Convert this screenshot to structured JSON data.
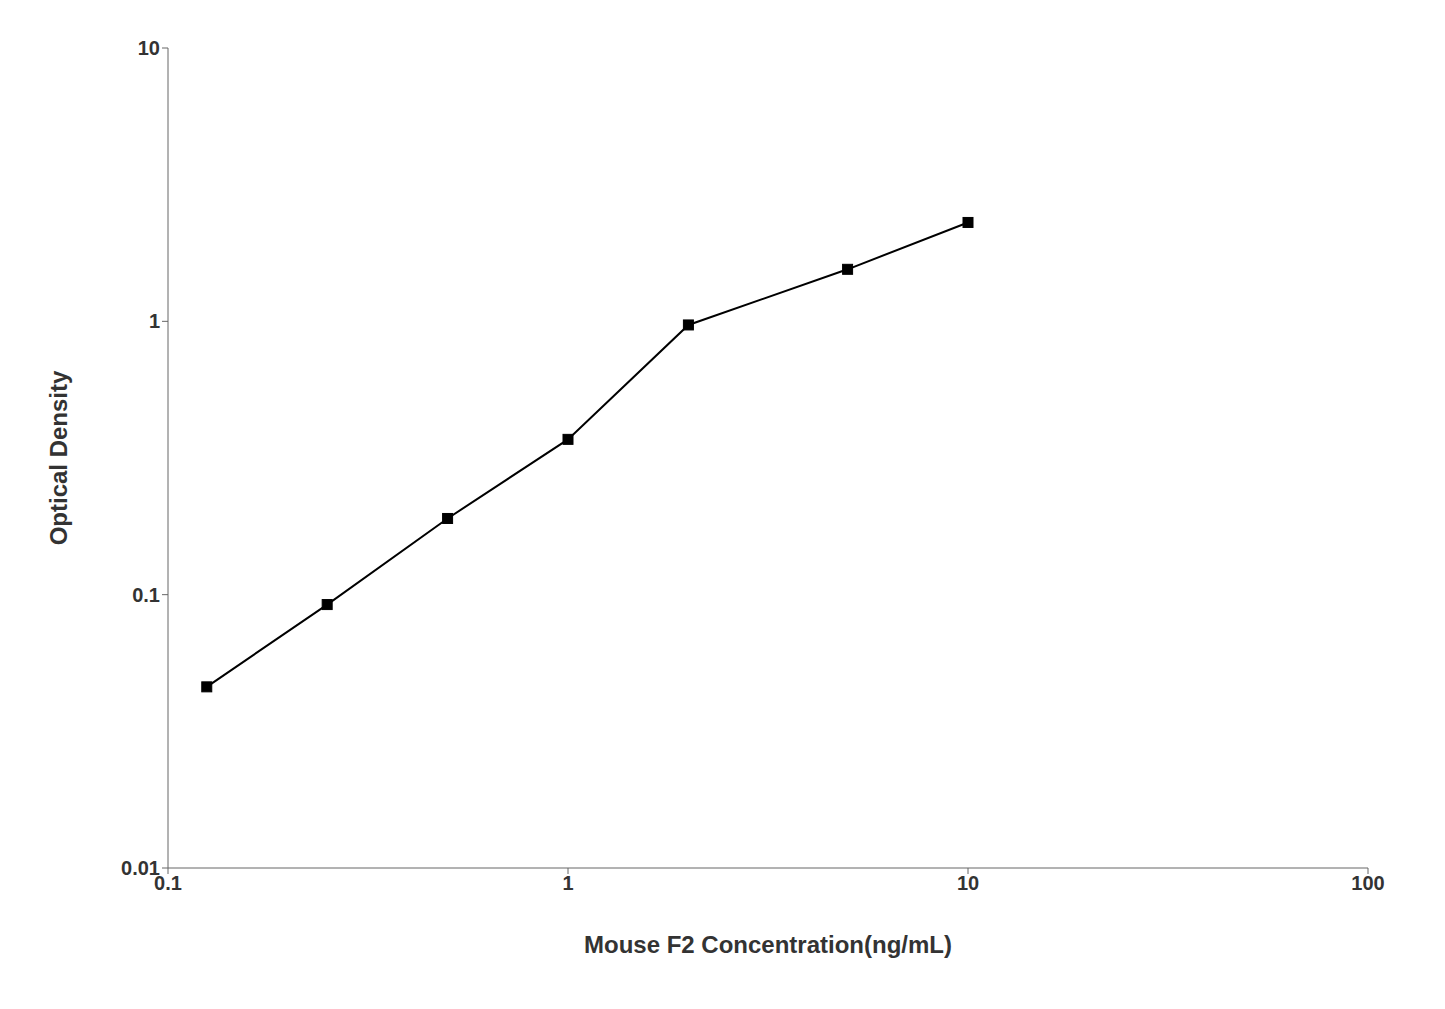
{
  "chart_data": {
    "type": "line",
    "x": [
      0.125,
      0.25,
      0.5,
      1.0,
      2.0,
      5.0,
      10.0
    ],
    "values": [
      0.046,
      0.092,
      0.19,
      0.37,
      0.97,
      1.55,
      2.3
    ],
    "xlabel": "Mouse F2 Concentration(ng/mL)",
    "ylabel": "Optical Density",
    "xlim": [
      0.1,
      100
    ],
    "ylim": [
      0.01,
      10
    ],
    "xticks": [
      0.1,
      1,
      10,
      100
    ],
    "yticks": [
      0.01,
      0.1,
      1,
      10
    ],
    "log": true,
    "grid": false,
    "color": "#000000",
    "marker": "square"
  }
}
